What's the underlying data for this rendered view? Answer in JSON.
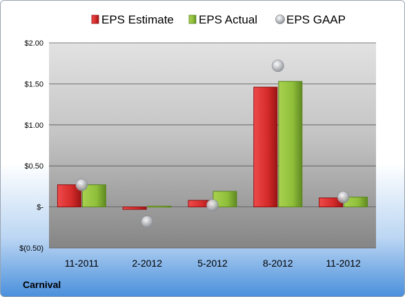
{
  "company": "Carnival",
  "legend": [
    {
      "key": "estimate",
      "label": "EPS Estimate"
    },
    {
      "key": "actual",
      "label": "EPS Actual"
    },
    {
      "key": "gaap",
      "label": "EPS GAAP"
    }
  ],
  "colors": {
    "estimate": "#d42a2a",
    "estimate_dark": "#8e1212",
    "actual": "#8fbf3a",
    "actual_dark": "#5c8520",
    "gaap": "#b9bcc2",
    "frame_top": "#ffffff",
    "frame_bottom": "#4a90dc",
    "plot_top": "#dedede",
    "plot_bottom": "#8a8a8a"
  },
  "chart_data": {
    "type": "bar",
    "categories": [
      "11-2011",
      "2-2012",
      "5-2012",
      "8-2012",
      "11-2012"
    ],
    "series": [
      {
        "name": "EPS Estimate",
        "values": [
          0.27,
          -0.03,
          0.08,
          1.46,
          0.11
        ]
      },
      {
        "name": "EPS Actual",
        "values": [
          0.27,
          0.01,
          0.19,
          1.53,
          0.12
        ]
      },
      {
        "name": "EPS GAAP",
        "values": [
          0.27,
          -0.18,
          0.02,
          1.72,
          0.12
        ],
        "style": "marker"
      }
    ],
    "yticks": [
      {
        "value": 2.0,
        "label": "$2.00"
      },
      {
        "value": 1.5,
        "label": "$1.50"
      },
      {
        "value": 1.0,
        "label": "$1.00"
      },
      {
        "value": 0.5,
        "label": "$0.50"
      },
      {
        "value": 0.0,
        "label": "$-"
      },
      {
        "value": -0.5,
        "label": "$(0.50)"
      }
    ],
    "ylim": [
      -0.5,
      2.0
    ],
    "grid": true,
    "legend_position": "top"
  }
}
